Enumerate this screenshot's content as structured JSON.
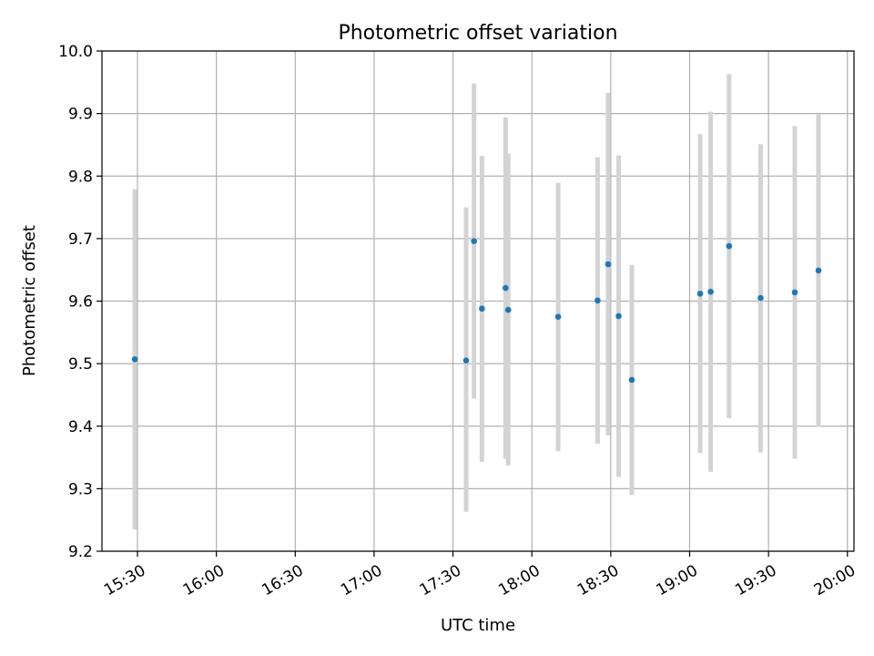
{
  "chart_data": {
    "type": "scatter",
    "title": "Photometric offset variation",
    "xlabel": "UTC time",
    "ylabel": "Photometric offset",
    "x_ticks": [
      "15:30",
      "16:00",
      "16:30",
      "17:00",
      "17:30",
      "18:00",
      "18:30",
      "19:00",
      "19:30",
      "20:00"
    ],
    "x_tick_minutes": [
      930,
      960,
      990,
      1020,
      1050,
      1080,
      1110,
      1140,
      1170,
      1200
    ],
    "xlim_minutes": [
      916.5,
      1202.5
    ],
    "ylim": [
      9.2,
      10.0
    ],
    "y_ticks": [
      9.2,
      9.3,
      9.4,
      9.5,
      9.6,
      9.7,
      9.8,
      9.9,
      10.0
    ],
    "y_tick_labels": [
      "9.2",
      "9.3",
      "9.4",
      "9.5",
      "9.6",
      "9.7",
      "9.8",
      "9.9",
      "10.0"
    ],
    "grid": true,
    "point_color": "#1f77b4",
    "errorbar_color": "#d3d3d3",
    "points": [
      {
        "time": "15:29",
        "y": 9.507,
        "ylow": 9.235,
        "yhigh": 9.779
      },
      {
        "time": "17:35",
        "y": 9.505,
        "ylow": 9.263,
        "yhigh": 9.75
      },
      {
        "time": "17:38",
        "y": 9.696,
        "ylow": 9.444,
        "yhigh": 9.948
      },
      {
        "time": "17:41",
        "y": 9.588,
        "ylow": 9.343,
        "yhigh": 9.832
      },
      {
        "time": "17:50",
        "y": 9.621,
        "ylow": 9.348,
        "yhigh": 9.894
      },
      {
        "time": "17:51",
        "y": 9.586,
        "ylow": 9.337,
        "yhigh": 9.836
      },
      {
        "time": "18:10",
        "y": 9.575,
        "ylow": 9.36,
        "yhigh": 9.789
      },
      {
        "time": "18:25",
        "y": 9.601,
        "ylow": 9.372,
        "yhigh": 9.83
      },
      {
        "time": "18:29",
        "y": 9.659,
        "ylow": 9.385,
        "yhigh": 9.933
      },
      {
        "time": "18:33",
        "y": 9.576,
        "ylow": 9.319,
        "yhigh": 9.833
      },
      {
        "time": "18:38",
        "y": 9.474,
        "ylow": 9.29,
        "yhigh": 9.658
      },
      {
        "time": "19:04",
        "y": 9.612,
        "ylow": 9.357,
        "yhigh": 9.867
      },
      {
        "time": "19:08",
        "y": 9.615,
        "ylow": 9.327,
        "yhigh": 9.903
      },
      {
        "time": "19:15",
        "y": 9.688,
        "ylow": 9.413,
        "yhigh": 9.963
      },
      {
        "time": "19:27",
        "y": 9.605,
        "ylow": 9.358,
        "yhigh": 9.851
      },
      {
        "time": "19:40",
        "y": 9.614,
        "ylow": 9.348,
        "yhigh": 9.88
      },
      {
        "time": "19:49",
        "y": 9.649,
        "ylow": 9.399,
        "yhigh": 9.899
      }
    ]
  }
}
